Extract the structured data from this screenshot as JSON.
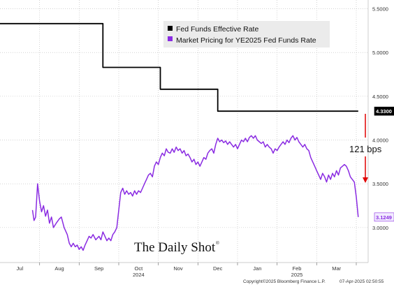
{
  "chart_data": {
    "type": "line",
    "title": "",
    "xlabel": "",
    "ylabel": "",
    "ylim": [
      2.6,
      5.6
    ],
    "y_ticks": [
      "5.5000",
      "5.0000",
      "4.5000",
      "4.0000",
      "3.5000",
      "3.0000"
    ],
    "x_ticks": [
      {
        "label": "Jul",
        "t": 0.5
      },
      {
        "label": "Aug",
        "t": 1.5
      },
      {
        "label": "Sep",
        "t": 2.5
      },
      {
        "label": "Oct",
        "t": 3.5
      },
      {
        "label": "Nov",
        "t": 4.5
      },
      {
        "label": "Dec",
        "t": 5.5
      },
      {
        "label": "Jan",
        "t": 6.5
      },
      {
        "label": "Feb",
        "t": 7.5
      },
      {
        "label": "Mar",
        "t": 8.5
      }
    ],
    "year_labels": [
      {
        "label": "2024",
        "t": 3.5
      },
      {
        "label": "2025",
        "t": 7.5
      }
    ],
    "legend_position": "top-center",
    "grid": true,
    "series": [
      {
        "name": "Fed Funds Effective Rate",
        "color": "#000000",
        "last_label": "4.3300",
        "step": true,
        "points": [
          [
            0.0,
            5.33
          ],
          [
            2.6,
            5.33
          ],
          [
            2.6,
            4.83
          ],
          [
            4.05,
            4.83
          ],
          [
            4.05,
            4.58
          ],
          [
            5.5,
            4.58
          ],
          [
            5.5,
            4.33
          ],
          [
            9.05,
            4.33
          ]
        ]
      },
      {
        "name": "Market Pricing for YE2025 Fed Funds Rate",
        "color": "#8a2be2",
        "last_label": "3.1249",
        "step": false,
        "points": [
          [
            0.82,
            3.2
          ],
          [
            0.86,
            3.08
          ],
          [
            0.9,
            3.12
          ],
          [
            0.95,
            3.5
          ],
          [
            1.0,
            3.3
          ],
          [
            1.05,
            3.18
          ],
          [
            1.1,
            3.25
          ],
          [
            1.15,
            3.13
          ],
          [
            1.2,
            3.2
          ],
          [
            1.25,
            3.05
          ],
          [
            1.3,
            3.12
          ],
          [
            1.35,
            3.0
          ],
          [
            1.42,
            3.05
          ],
          [
            1.5,
            3.1
          ],
          [
            1.55,
            3.12
          ],
          [
            1.62,
            3.0
          ],
          [
            1.7,
            2.92
          ],
          [
            1.75,
            2.82
          ],
          [
            1.8,
            2.78
          ],
          [
            1.85,
            2.82
          ],
          [
            1.9,
            2.78
          ],
          [
            1.95,
            2.8
          ],
          [
            2.0,
            2.75
          ],
          [
            2.05,
            2.78
          ],
          [
            2.1,
            2.74
          ],
          [
            2.15,
            2.8
          ],
          [
            2.2,
            2.85
          ],
          [
            2.25,
            2.9
          ],
          [
            2.3,
            2.88
          ],
          [
            2.35,
            2.92
          ],
          [
            2.42,
            2.86
          ],
          [
            2.5,
            2.9
          ],
          [
            2.55,
            2.86
          ],
          [
            2.6,
            2.95
          ],
          [
            2.65,
            2.9
          ],
          [
            2.7,
            2.85
          ],
          [
            2.75,
            2.88
          ],
          [
            2.8,
            2.85
          ],
          [
            2.85,
            2.92
          ],
          [
            2.9,
            2.95
          ],
          [
            2.95,
            3.0
          ],
          [
            3.0,
            3.2
          ],
          [
            3.05,
            3.4
          ],
          [
            3.1,
            3.45
          ],
          [
            3.15,
            3.38
          ],
          [
            3.2,
            3.42
          ],
          [
            3.25,
            3.38
          ],
          [
            3.3,
            3.4
          ],
          [
            3.35,
            3.36
          ],
          [
            3.4,
            3.42
          ],
          [
            3.45,
            3.38
          ],
          [
            3.5,
            3.42
          ],
          [
            3.55,
            3.4
          ],
          [
            3.6,
            3.45
          ],
          [
            3.65,
            3.5
          ],
          [
            3.7,
            3.55
          ],
          [
            3.75,
            3.6
          ],
          [
            3.8,
            3.62
          ],
          [
            3.85,
            3.58
          ],
          [
            3.9,
            3.7
          ],
          [
            3.95,
            3.75
          ],
          [
            4.0,
            3.72
          ],
          [
            4.05,
            3.8
          ],
          [
            4.1,
            3.85
          ],
          [
            4.15,
            3.82
          ],
          [
            4.2,
            3.9
          ],
          [
            4.25,
            3.86
          ],
          [
            4.3,
            3.85
          ],
          [
            4.35,
            3.9
          ],
          [
            4.4,
            3.86
          ],
          [
            4.45,
            3.92
          ],
          [
            4.5,
            3.88
          ],
          [
            4.55,
            3.9
          ],
          [
            4.6,
            3.85
          ],
          [
            4.65,
            3.88
          ],
          [
            4.7,
            3.82
          ],
          [
            4.75,
            3.84
          ],
          [
            4.8,
            3.8
          ],
          [
            4.85,
            3.75
          ],
          [
            4.9,
            3.78
          ],
          [
            4.95,
            3.72
          ],
          [
            5.0,
            3.75
          ],
          [
            5.05,
            3.7
          ],
          [
            5.1,
            3.75
          ],
          [
            5.15,
            3.8
          ],
          [
            5.2,
            3.78
          ],
          [
            5.25,
            3.85
          ],
          [
            5.3,
            3.88
          ],
          [
            5.35,
            3.9
          ],
          [
            5.4,
            3.85
          ],
          [
            5.45,
            3.95
          ],
          [
            5.5,
            4.02
          ],
          [
            5.55,
            3.98
          ],
          [
            5.6,
            4.0
          ],
          [
            5.65,
            3.97
          ],
          [
            5.7,
            3.99
          ],
          [
            5.75,
            3.95
          ],
          [
            5.8,
            3.98
          ],
          [
            5.85,
            3.95
          ],
          [
            5.9,
            3.92
          ],
          [
            5.95,
            3.95
          ],
          [
            6.0,
            3.9
          ],
          [
            6.05,
            3.95
          ],
          [
            6.1,
            4.0
          ],
          [
            6.15,
            3.98
          ],
          [
            6.2,
            4.02
          ],
          [
            6.25,
            3.98
          ],
          [
            6.3,
            4.03
          ],
          [
            6.35,
            4.05
          ],
          [
            6.4,
            4.02
          ],
          [
            6.45,
            4.05
          ],
          [
            6.5,
            4.0
          ],
          [
            6.55,
            3.98
          ],
          [
            6.6,
            3.96
          ],
          [
            6.65,
            3.98
          ],
          [
            6.7,
            3.92
          ],
          [
            6.75,
            3.95
          ],
          [
            6.8,
            3.92
          ],
          [
            6.85,
            3.9
          ],
          [
            6.9,
            3.85
          ],
          [
            6.95,
            3.9
          ],
          [
            7.0,
            3.88
          ],
          [
            7.05,
            3.92
          ],
          [
            7.1,
            3.95
          ],
          [
            7.15,
            3.98
          ],
          [
            7.2,
            3.95
          ],
          [
            7.25,
            4.0
          ],
          [
            7.3,
            3.97
          ],
          [
            7.35,
            4.02
          ],
          [
            7.4,
            4.05
          ],
          [
            7.45,
            4.0
          ],
          [
            7.5,
            4.03
          ],
          [
            7.55,
            3.98
          ],
          [
            7.6,
            3.95
          ],
          [
            7.65,
            3.92
          ],
          [
            7.7,
            3.95
          ],
          [
            7.75,
            3.9
          ],
          [
            7.8,
            3.88
          ],
          [
            7.85,
            3.8
          ],
          [
            7.9,
            3.75
          ],
          [
            7.95,
            3.7
          ],
          [
            8.0,
            3.65
          ],
          [
            8.05,
            3.6
          ],
          [
            8.1,
            3.55
          ],
          [
            8.15,
            3.62
          ],
          [
            8.2,
            3.58
          ],
          [
            8.25,
            3.52
          ],
          [
            8.3,
            3.6
          ],
          [
            8.35,
            3.55
          ],
          [
            8.4,
            3.62
          ],
          [
            8.45,
            3.58
          ],
          [
            8.5,
            3.65
          ],
          [
            8.55,
            3.6
          ],
          [
            8.6,
            3.68
          ],
          [
            8.65,
            3.7
          ],
          [
            8.7,
            3.72
          ],
          [
            8.75,
            3.7
          ],
          [
            8.8,
            3.65
          ],
          [
            8.85,
            3.58
          ],
          [
            8.9,
            3.55
          ],
          [
            8.95,
            3.52
          ],
          [
            9.0,
            3.35
          ],
          [
            9.05,
            3.12
          ]
        ]
      }
    ],
    "annotation": {
      "text": "121 bps",
      "color": "#e00000"
    }
  },
  "watermark": "The Daily Shot",
  "watermark_mark": "®",
  "footer": {
    "copyright": "Copyright©2025 Bloomberg Finance L.P.",
    "timestamp": "07-Apr-2025 02:50:55"
  }
}
